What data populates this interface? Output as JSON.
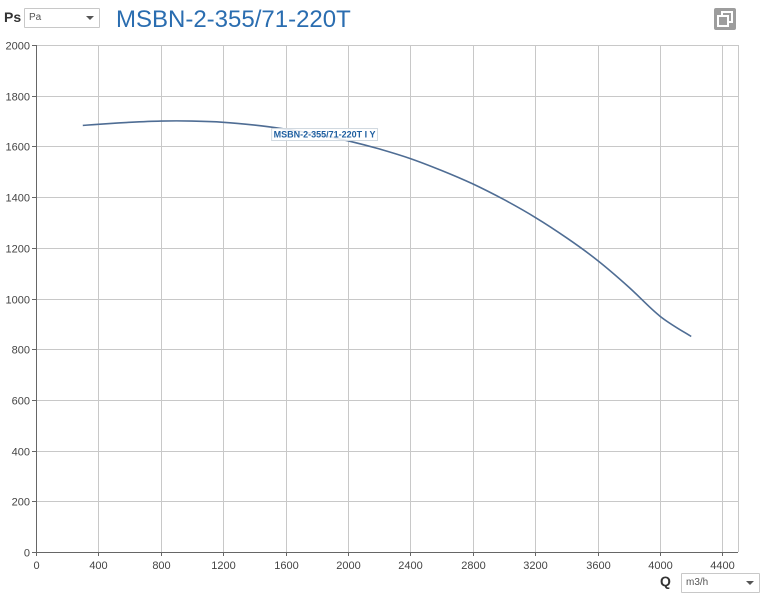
{
  "header": {
    "y_unit_symbol": "Ps",
    "y_unit_select_value": "Pa",
    "title": "MSBN-2-355/71-220T"
  },
  "footer": {
    "x_unit_symbol": "Q",
    "x_unit_select_value": "m3/h"
  },
  "icons": {
    "popout": "popout-icon"
  },
  "colors": {
    "title": "#2a6db0",
    "curve": "#4f6d94",
    "grid": "#c8c8c8",
    "popout_bg": "#9d9d9d"
  },
  "chart_data": {
    "type": "line",
    "xlim": [
      0,
      4500
    ],
    "ylim": [
      0,
      2000
    ],
    "x_ticks": [
      0,
      400,
      800,
      1200,
      1600,
      2000,
      2400,
      2800,
      3200,
      3600,
      4000,
      4400
    ],
    "y_ticks": [
      0,
      200,
      400,
      600,
      800,
      1000,
      1200,
      1400,
      1600,
      1800,
      2000
    ],
    "grid": true,
    "series": [
      {
        "name": "MSBN-2-355/71-220T I Y",
        "x": [
          300,
          400,
          600,
          800,
          1000,
          1200,
          1400,
          1600,
          1800,
          2000,
          2200,
          2400,
          2600,
          2800,
          3000,
          3200,
          3400,
          3600,
          3800,
          4000,
          4200
        ],
        "y": [
          1683,
          1687,
          1695,
          1700,
          1700,
          1695,
          1684,
          1668,
          1648,
          1622,
          1590,
          1552,
          1505,
          1452,
          1390,
          1320,
          1240,
          1150,
          1045,
          930,
          850
        ]
      }
    ],
    "annotation": {
      "text": "MSBN-2-355/71-220T I Y",
      "x": 1850,
      "y": 1635
    }
  }
}
